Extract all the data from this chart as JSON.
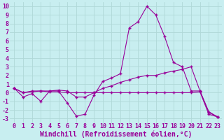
{
  "xlabel": "Windchill (Refroidissement éolien,°C)",
  "bg_color": "#c8eef0",
  "grid_color": "#b0d8d8",
  "line_color": "#990099",
  "xlim": [
    -0.5,
    23.5
  ],
  "ylim": [
    -3.5,
    10.5
  ],
  "xticks": [
    0,
    1,
    2,
    3,
    4,
    5,
    6,
    7,
    8,
    9,
    10,
    11,
    12,
    13,
    14,
    15,
    16,
    17,
    18,
    19,
    20,
    21,
    22,
    23
  ],
  "yticks": [
    -3,
    -2,
    -1,
    0,
    1,
    2,
    3,
    4,
    5,
    6,
    7,
    8,
    9,
    10
  ],
  "line1_x": [
    0,
    1,
    2,
    3,
    4,
    5,
    6,
    7,
    8,
    9,
    10,
    11,
    12,
    13,
    14,
    15,
    16,
    17,
    18,
    19,
    20,
    21,
    22,
    23
  ],
  "line1_y": [
    0.5,
    -0.5,
    -0.1,
    -1.0,
    0.2,
    0.2,
    -1.2,
    -2.7,
    -2.5,
    -0.3,
    1.3,
    1.7,
    2.2,
    7.5,
    8.2,
    10.0,
    9.0,
    6.5,
    3.5,
    3.0,
    0.2,
    0.2,
    -2.2,
    -2.8
  ],
  "line2_x": [
    0,
    1,
    2,
    3,
    4,
    5,
    6,
    7,
    8,
    9,
    10,
    11,
    12,
    13,
    14,
    15,
    16,
    17,
    18,
    19,
    20,
    21,
    22,
    23
  ],
  "line2_y": [
    0.5,
    0.0,
    0.2,
    0.2,
    0.1,
    0.1,
    0.0,
    0.0,
    0.0,
    0.0,
    0.0,
    0.0,
    0.0,
    0.0,
    0.0,
    0.0,
    0.0,
    0.0,
    0.0,
    0.0,
    0.0,
    0.1,
    -2.5,
    -2.8
  ],
  "line3_x": [
    0,
    1,
    2,
    3,
    4,
    5,
    6,
    7,
    8,
    9,
    10,
    11,
    12,
    13,
    14,
    15,
    16,
    17,
    18,
    19,
    20,
    21,
    22,
    23
  ],
  "line3_y": [
    0.5,
    0.0,
    0.1,
    0.2,
    0.2,
    0.3,
    0.2,
    -0.5,
    -0.5,
    0.0,
    0.5,
    0.8,
    1.2,
    1.5,
    1.8,
    2.0,
    2.0,
    2.3,
    2.5,
    2.7,
    3.0,
    0.2,
    -2.3,
    -2.8
  ],
  "font_family": "monospace",
  "tick_fontsize": 6.0,
  "label_fontsize": 7.0
}
